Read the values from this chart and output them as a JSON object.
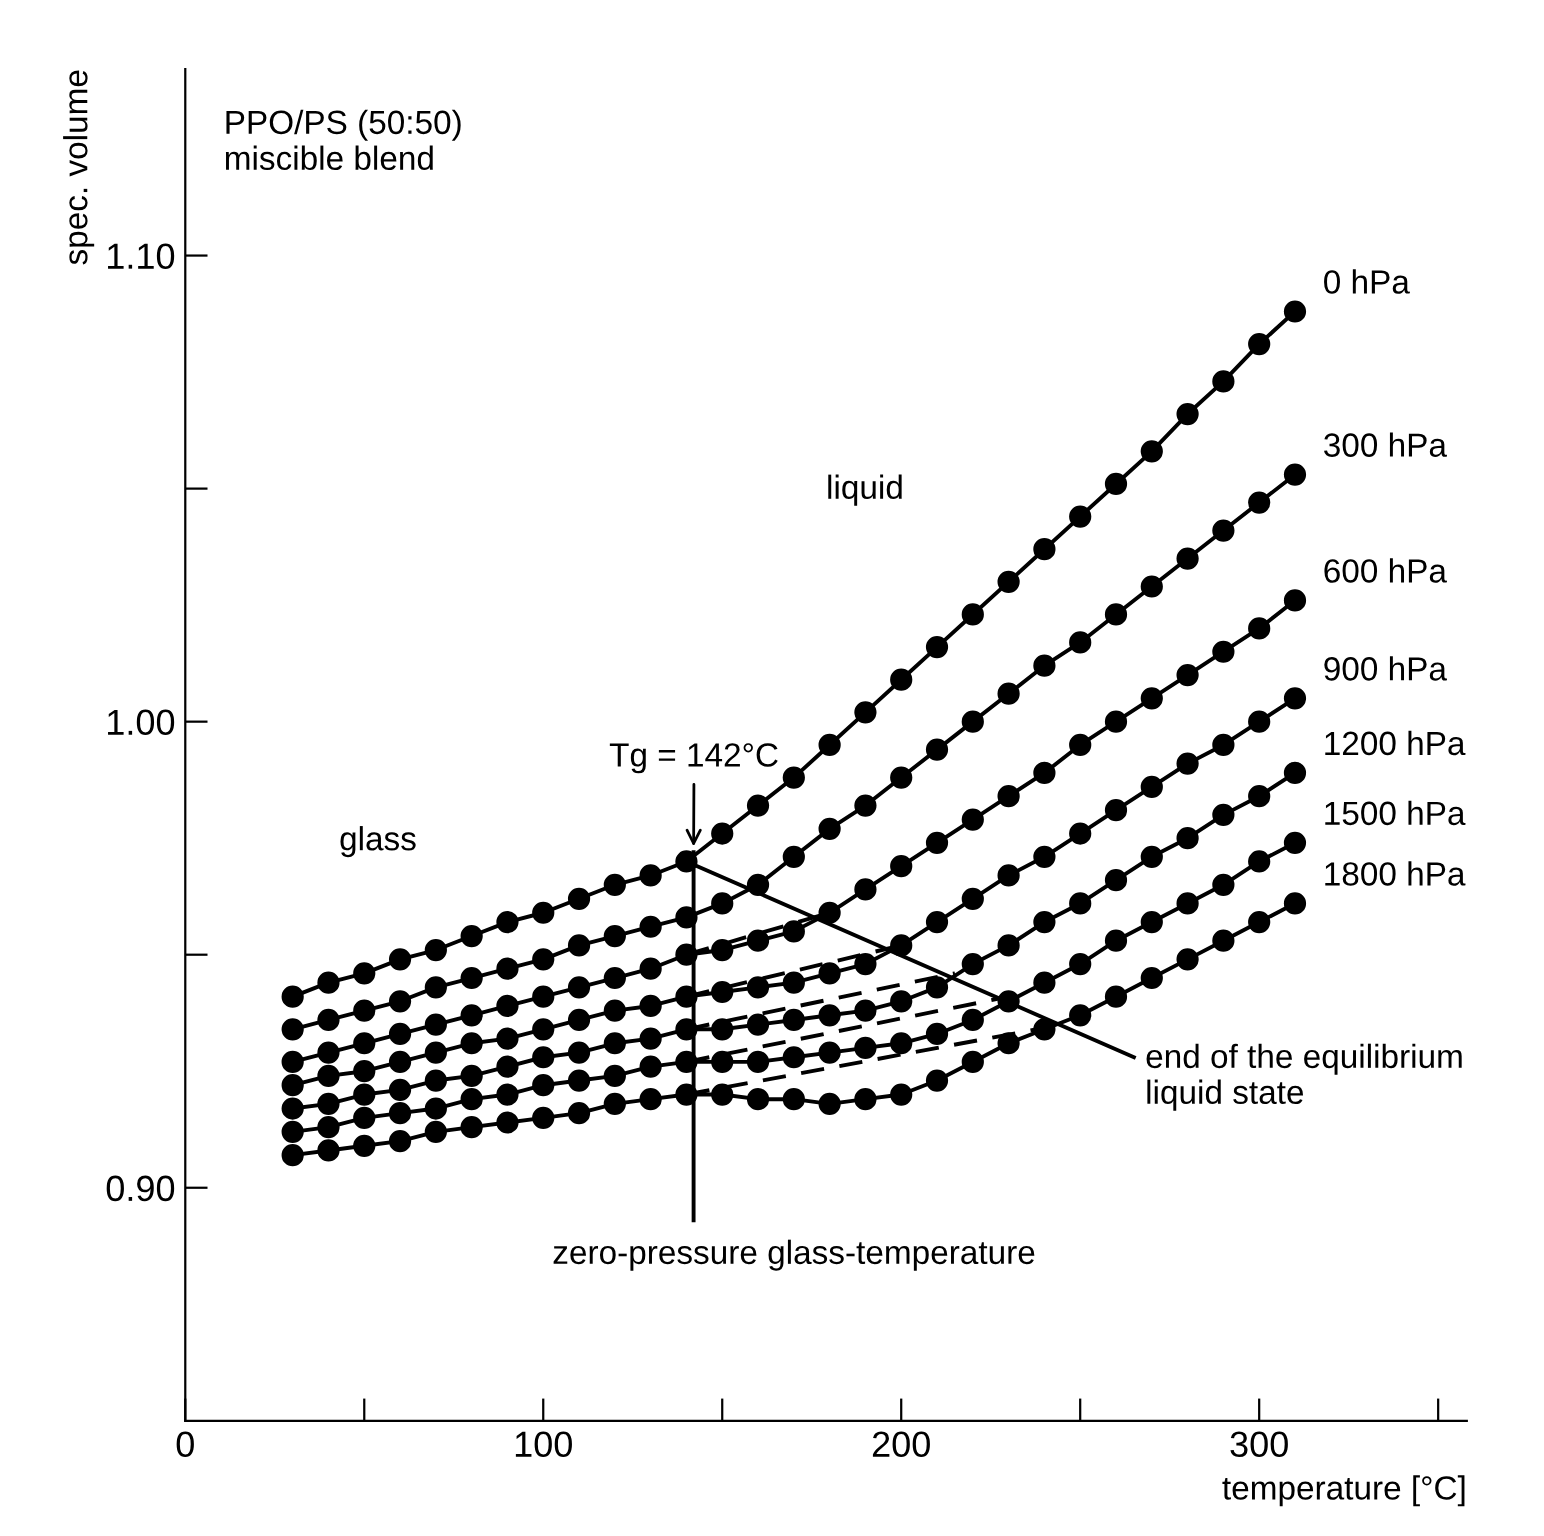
{
  "chart_data": {
    "type": "line",
    "xlabel": "temperature [°C]",
    "ylabel": "spec. volume",
    "xlim": [
      0,
      358
    ],
    "ylim": [
      0.85,
      1.14
    ],
    "xticks": [
      0,
      {
        "value": 50,
        "label": null
      },
      100,
      {
        "value": 150,
        "label": null
      },
      200,
      {
        "value": 250,
        "label": null
      },
      300,
      {
        "value": 350,
        "label": null
      }
    ],
    "yticks": [
      {
        "value": 0.9,
        "label": "0.90"
      },
      {
        "value": 0.95,
        "label": null
      },
      {
        "value": 1.0,
        "label": "1.00"
      },
      {
        "value": 1.05,
        "label": null
      },
      {
        "value": 1.1,
        "label": "1.10"
      }
    ],
    "grid": false,
    "marker": "circle",
    "line_style": "solid",
    "x": [
      30,
      40,
      50,
      60,
      70,
      80,
      90,
      100,
      110,
      120,
      130,
      140,
      150,
      160,
      170,
      180,
      190,
      200,
      210,
      220,
      230,
      240,
      250,
      260,
      270,
      280,
      290,
      300,
      310
    ],
    "series": [
      {
        "name": "0 hPa",
        "color": "#000000",
        "values": [
          0.941,
          0.944,
          0.946,
          0.949,
          0.951,
          0.954,
          0.957,
          0.959,
          0.962,
          0.965,
          0.967,
          0.97,
          0.976,
          0.982,
          0.988,
          0.995,
          1.002,
          1.009,
          1.016,
          1.023,
          1.03,
          1.037,
          1.044,
          1.051,
          1.058,
          1.066,
          1.073,
          1.081,
          1.088
        ]
      },
      {
        "name": "300 hPa",
        "color": "#000000",
        "values": [
          0.934,
          0.936,
          0.938,
          0.94,
          0.943,
          0.945,
          0.947,
          0.949,
          0.952,
          0.954,
          0.956,
          0.958,
          0.961,
          0.965,
          0.971,
          0.977,
          0.982,
          0.988,
          0.994,
          1.0,
          1.006,
          1.012,
          1.017,
          1.023,
          1.029,
          1.035,
          1.041,
          1.047,
          1.053
        ]
      },
      {
        "name": "600 hPa",
        "color": "#000000",
        "values": [
          0.927,
          0.929,
          0.931,
          0.933,
          0.935,
          0.937,
          0.939,
          0.941,
          0.943,
          0.945,
          0.947,
          0.95,
          0.951,
          0.953,
          0.955,
          0.959,
          0.964,
          0.969,
          0.974,
          0.979,
          0.984,
          0.989,
          0.995,
          1.0,
          1.005,
          1.01,
          1.015,
          1.02,
          1.026
        ]
      },
      {
        "name": "900 hPa",
        "color": "#000000",
        "values": [
          0.922,
          0.924,
          0.925,
          0.927,
          0.929,
          0.931,
          0.932,
          0.934,
          0.936,
          0.938,
          0.939,
          0.941,
          0.942,
          0.943,
          0.944,
          0.946,
          0.948,
          0.952,
          0.957,
          0.962,
          0.967,
          0.971,
          0.976,
          0.981,
          0.986,
          0.991,
          0.995,
          1.0,
          1.005
        ]
      },
      {
        "name": "1200 hPa",
        "color": "#000000",
        "values": [
          0.917,
          0.918,
          0.92,
          0.921,
          0.923,
          0.924,
          0.926,
          0.928,
          0.929,
          0.931,
          0.932,
          0.934,
          0.934,
          0.935,
          0.936,
          0.937,
          0.938,
          0.94,
          0.943,
          0.948,
          0.952,
          0.957,
          0.961,
          0.966,
          0.971,
          0.975,
          0.98,
          0.984,
          0.989
        ]
      },
      {
        "name": "1500 hPa",
        "color": "#000000",
        "values": [
          0.912,
          0.913,
          0.915,
          0.916,
          0.917,
          0.919,
          0.92,
          0.922,
          0.923,
          0.924,
          0.926,
          0.927,
          0.927,
          0.927,
          0.928,
          0.929,
          0.93,
          0.931,
          0.933,
          0.936,
          0.94,
          0.944,
          0.948,
          0.953,
          0.957,
          0.961,
          0.965,
          0.97,
          0.974
        ]
      },
      {
        "name": "1800 hPa",
        "color": "#000000",
        "values": [
          0.907,
          0.908,
          0.909,
          0.91,
          0.912,
          0.913,
          0.914,
          0.915,
          0.916,
          0.918,
          0.919,
          0.92,
          0.92,
          0.919,
          0.919,
          0.918,
          0.919,
          0.92,
          0.923,
          0.927,
          0.931,
          0.934,
          0.937,
          0.941,
          0.945,
          0.949,
          0.953,
          0.957,
          0.961
        ]
      },
      {
        "color": "#000000",
        "x": [
          140,
          180
        ],
        "values": [
          0.95,
          0.959
        ],
        "marker": "none",
        "line_style": "dashed"
      },
      {
        "color": "#000000",
        "x": [
          140,
          200
        ],
        "values": [
          0.941,
          0.952
        ],
        "marker": "none",
        "line_style": "dashed"
      },
      {
        "color": "#000000",
        "x": [
          140,
          215
        ],
        "values": [
          0.934,
          0.946
        ],
        "marker": "none",
        "line_style": "dashed"
      },
      {
        "color": "#000000",
        "x": [
          140,
          230
        ],
        "values": [
          0.927,
          0.941
        ],
        "marker": "none",
        "line_style": "dashed"
      },
      {
        "color": "#000000",
        "x": [
          140,
          245
        ],
        "values": [
          0.92,
          0.935
        ],
        "marker": "none",
        "line_style": "dashed"
      },
      {
        "color": "#000000",
        "x": [
          140,
          265
        ],
        "values": [
          0.97,
          0.928
        ],
        "marker": "none",
        "line_style": "solid"
      },
      {
        "color": "#000000",
        "x": [
          142,
          142
        ],
        "values": [
          0.893,
          0.972
        ],
        "marker": "none",
        "line_style": "solid"
      }
    ],
    "annotations": [
      "PPO/PS (50:50)\nmiscible blend",
      "glass",
      "liquid",
      {
        "text": "Tg = 142°C",
        "x": 142,
        "y": 0.972
      },
      "zero-pressure glass-temperature",
      "end of the equilibrium\nliquid state"
    ]
  }
}
